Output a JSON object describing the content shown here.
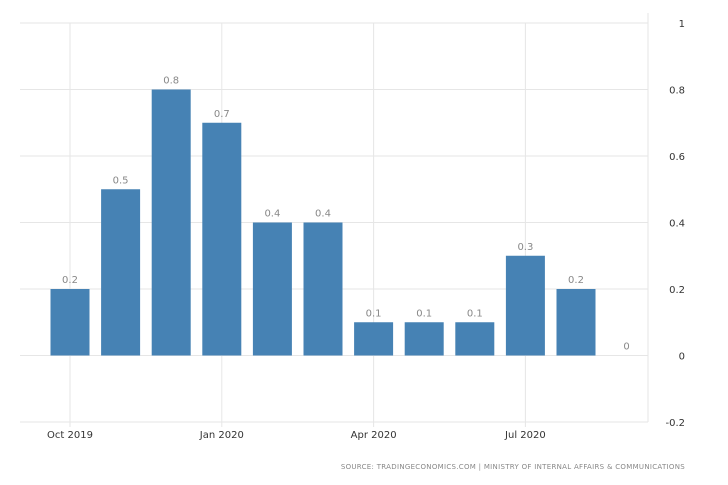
{
  "chart_data": {
    "type": "bar",
    "categories": [
      "Oct 2019",
      "Nov 2019",
      "Dec 2019",
      "Jan 2020",
      "Feb 2020",
      "Mar 2020",
      "Apr 2020",
      "May 2020",
      "Jun 2020",
      "Jul 2020",
      "Aug 2020",
      "Sep 2020"
    ],
    "values": [
      0.2,
      0.5,
      0.8,
      0.7,
      0.4,
      0.4,
      0.1,
      0.1,
      0.1,
      0.3,
      0.2,
      0
    ],
    "data_labels": [
      "0.2",
      "0.5",
      "0.8",
      "0.7",
      "0.4",
      "0.4",
      "0.1",
      "0.1",
      "0.1",
      "0.3",
      "0.2",
      "0"
    ],
    "x_tick_labels": [
      {
        "index": 0,
        "label": "Oct 2019"
      },
      {
        "index": 3,
        "label": "Jan 2020"
      },
      {
        "index": 6,
        "label": "Apr 2020"
      },
      {
        "index": 9,
        "label": "Jul 2020"
      }
    ],
    "y_ticks": [
      -0.2,
      0,
      0.2,
      0.4,
      0.6,
      0.8,
      1
    ],
    "y_tick_labels": [
      "-0.2",
      "0",
      "0.2",
      "0.4",
      "0.6",
      "0.8",
      "1"
    ],
    "ylim": [
      -0.2,
      1
    ],
    "y_axis_side": "right",
    "grid": true,
    "bar_color": "#4682b4",
    "title": "",
    "xlabel": "",
    "ylabel": ""
  },
  "source": "SOURCE: TRADINGECONOMICS.COM | MINISTRY OF INTERNAL AFFAIRS & COMMUNICATIONS"
}
